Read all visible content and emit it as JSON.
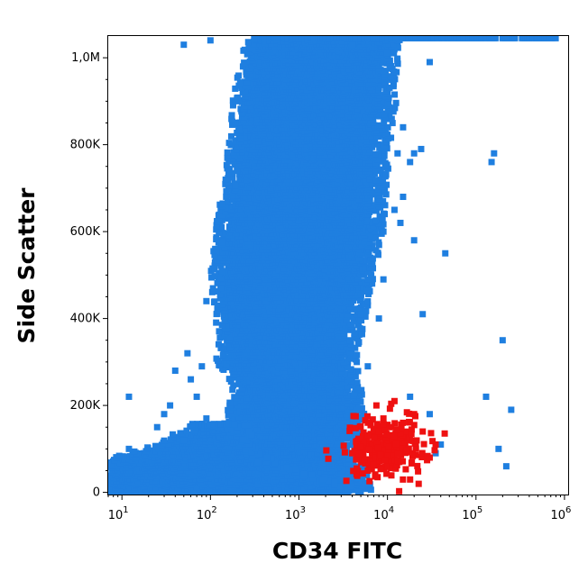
{
  "chart_data": {
    "type": "scatter",
    "xlabel": "CD34 FITC",
    "ylabel": "Side Scatter",
    "x_scale": "log",
    "xlim": [
      7,
      1100000
    ],
    "ylim": [
      -5000,
      1050000
    ],
    "x_ticks": [
      {
        "base": "10",
        "exp": "1",
        "value": 10
      },
      {
        "base": "10",
        "exp": "2",
        "value": 100
      },
      {
        "base": "10",
        "exp": "3",
        "value": 1000
      },
      {
        "base": "10",
        "exp": "4",
        "value": 10000
      },
      {
        "base": "10",
        "exp": "5",
        "value": 100000
      },
      {
        "base": "10",
        "exp": "6",
        "value": 1000000
      }
    ],
    "y_ticks": [
      {
        "label": "0",
        "value": 0
      },
      {
        "label": "200K",
        "value": 200000
      },
      {
        "label": "400K",
        "value": 400000
      },
      {
        "label": "600K",
        "value": 600000
      },
      {
        "label": "800K",
        "value": 800000
      },
      {
        "label": "1,0M",
        "value": 1000000
      }
    ],
    "grid": false,
    "colors": {
      "negative_population": "#1f7fe0",
      "positive_population": "#ee1111"
    },
    "series": [
      {
        "color": "#1f7fe0",
        "populations": [
          {
            "description": "main column",
            "band_log10x": [
              {
                "y": 0,
                "x_min": 2.1,
                "x_max": 3.7
              },
              {
                "y": 50000,
                "x_min": 2.1,
                "x_max": 3.6
              },
              {
                "y": 100000,
                "x_min": 2.2,
                "x_max": 3.5
              },
              {
                "y": 150000,
                "x_min": 2.3,
                "x_max": 3.6
              },
              {
                "y": 200000,
                "x_min": 2.35,
                "x_max": 3.6
              },
              {
                "y": 250000,
                "x_min": 2.38,
                "x_max": 3.55
              },
              {
                "y": 300000,
                "x_min": 2.2,
                "x_max": 3.5
              },
              {
                "y": 350000,
                "x_min": 2.25,
                "x_max": 3.55
              },
              {
                "y": 400000,
                "x_min": 2.2,
                "x_max": 3.6
              },
              {
                "y": 500000,
                "x_min": 2.15,
                "x_max": 3.7
              },
              {
                "y": 600000,
                "x_min": 2.18,
                "x_max": 3.8
              },
              {
                "y": 700000,
                "x_min": 2.3,
                "x_max": 3.85
              },
              {
                "y": 800000,
                "x_min": 2.35,
                "x_max": 3.88
              },
              {
                "y": 900000,
                "x_min": 2.4,
                "x_max": 3.95
              },
              {
                "y": 1000000,
                "x_min": 2.5,
                "x_max": 3.98
              },
              {
                "y": 1050000,
                "x_min": 2.55,
                "x_max": 4.0
              }
            ]
          },
          {
            "description": "low side-scatter base",
            "band_log10x": [
              {
                "y": -5000,
                "x_min": 0.85,
                "x_max": 3.6
              },
              {
                "y": 20000,
                "x_min": 0.85,
                "x_max": 3.4
              },
              {
                "y": 40000,
                "x_min": 0.85,
                "x_max": 3.0
              },
              {
                "y": 60000,
                "x_min": 0.85,
                "x_max": 2.7
              },
              {
                "y": 80000,
                "x_min": 1.0,
                "x_max": 2.5
              },
              {
                "y": 100000,
                "x_min": 1.4,
                "x_max": 2.4
              },
              {
                "y": 120000,
                "x_min": 1.6,
                "x_max": 2.35
              },
              {
                "y": 140000,
                "x_min": 1.8,
                "x_max": 2.3
              },
              {
                "y": 160000,
                "x_min": 1.9,
                "x_max": 2.3
              }
            ]
          }
        ],
        "scattered_points": [
          {
            "x": 50,
            "y": 1030000
          },
          {
            "x": 100,
            "y": 1040000
          },
          {
            "x": 4000,
            "y": 1030000
          },
          {
            "x": 30000,
            "y": 990000
          },
          {
            "x": 15000,
            "y": 840000
          },
          {
            "x": 13000,
            "y": 780000
          },
          {
            "x": 20000,
            "y": 780000
          },
          {
            "x": 24000,
            "y": 790000
          },
          {
            "x": 18000,
            "y": 760000
          },
          {
            "x": 15000,
            "y": 680000
          },
          {
            "x": 12000,
            "y": 650000
          },
          {
            "x": 14000,
            "y": 620000
          },
          {
            "x": 9000,
            "y": 600000
          },
          {
            "x": 20000,
            "y": 580000
          },
          {
            "x": 45000,
            "y": 550000
          },
          {
            "x": 9000,
            "y": 490000
          },
          {
            "x": 5000,
            "y": 410000
          },
          {
            "x": 8000,
            "y": 400000
          },
          {
            "x": 25000,
            "y": 410000
          },
          {
            "x": 4500,
            "y": 300000
          },
          {
            "x": 6000,
            "y": 290000
          },
          {
            "x": 18000,
            "y": 220000
          },
          {
            "x": 30000,
            "y": 180000
          },
          {
            "x": 130000,
            "y": 220000
          },
          {
            "x": 150000,
            "y": 760000
          },
          {
            "x": 160000,
            "y": 780000
          },
          {
            "x": 200000,
            "y": 350000
          },
          {
            "x": 250000,
            "y": 190000
          },
          {
            "x": 220000,
            "y": 60000
          },
          {
            "x": 180000,
            "y": 100000
          },
          {
            "x": 40000,
            "y": 110000
          },
          {
            "x": 35000,
            "y": 90000
          },
          {
            "x": 50,
            "y": 120000
          },
          {
            "x": 25,
            "y": 150000
          },
          {
            "x": 12,
            "y": 220000
          },
          {
            "x": 12,
            "y": 100000
          },
          {
            "x": 30,
            "y": 180000
          },
          {
            "x": 70,
            "y": 220000
          },
          {
            "x": 60,
            "y": 260000
          },
          {
            "x": 80,
            "y": 290000
          },
          {
            "x": 55,
            "y": 320000
          },
          {
            "x": 40,
            "y": 280000
          },
          {
            "x": 90,
            "y": 170000
          },
          {
            "x": 35,
            "y": 200000
          },
          {
            "x": 120,
            "y": 430000
          },
          {
            "x": 130,
            "y": 470000
          },
          {
            "x": 90,
            "y": 440000
          }
        ]
      },
      {
        "color": "#ee1111",
        "populations": [
          {
            "description": "CD34 positive cluster",
            "center_log10x": 4.0,
            "spread_log10x": 0.22,
            "center_y": 100000,
            "spread_y": 35000
          }
        ],
        "scattered_points": [
          {
            "x": 7500,
            "y": 200000
          },
          {
            "x": 12000,
            "y": 210000
          },
          {
            "x": 9000,
            "y": 170000
          },
          {
            "x": 20000,
            "y": 180000
          },
          {
            "x": 15000,
            "y": 160000
          },
          {
            "x": 25000,
            "y": 140000
          },
          {
            "x": 4500,
            "y": 55000
          },
          {
            "x": 6000,
            "y": 50000
          },
          {
            "x": 4000,
            "y": 90000
          },
          {
            "x": 30000,
            "y": 80000
          },
          {
            "x": 35000,
            "y": 110000
          },
          {
            "x": 8000,
            "y": 140000
          }
        ]
      }
    ]
  }
}
